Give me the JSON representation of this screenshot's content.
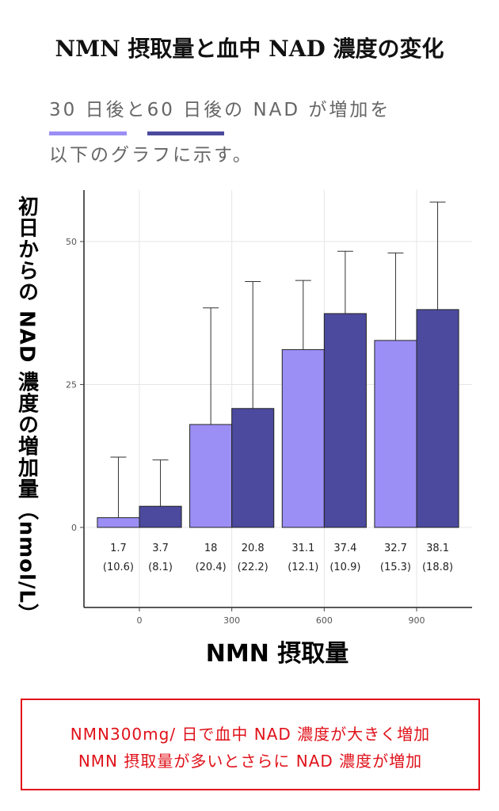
{
  "header": {
    "title": "NMN 摂取量と血中 NAD 濃度の変化",
    "sub_30": "30 日後",
    "sub_to": "と",
    "sub_60": "60 日後",
    "sub_rest1": "の NAD が増加を",
    "sub_rest2": "以下のグラフに示す。"
  },
  "chart_data": {
    "type": "bar",
    "categories": [
      "0",
      "300",
      "600",
      "900"
    ],
    "xlabel": "NMN 摂取量",
    "ylabel": "初日からの NAD 濃度の増加量（nmol/L）",
    "ylim": [
      -14,
      59
    ],
    "yticks": [
      0,
      25,
      50
    ],
    "grid": true,
    "series": [
      {
        "color": "#9b8ff5",
        "values": [
          1.7,
          18,
          31.1,
          32.7
        ],
        "sd": [
          10.6,
          20.4,
          12.1,
          15.3
        ],
        "value_labels": [
          "1.7",
          "18",
          "31.1",
          "32.7"
        ],
        "sd_labels": [
          "(10.6)",
          "(20.4)",
          "(12.1)",
          "(15.3)"
        ]
      },
      {
        "color": "#4b4a9e",
        "values": [
          3.7,
          20.8,
          37.4,
          38.1
        ],
        "sd": [
          8.1,
          22.2,
          10.9,
          18.8
        ],
        "value_labels": [
          "3.7",
          "20.8",
          "37.4",
          "38.1"
        ],
        "sd_labels": [
          "(8.1)",
          "(22.2)",
          "(10.9)",
          "(18.8)"
        ]
      }
    ]
  },
  "note": {
    "line1": "NMN300mg/ 日で血中 NAD 濃度が大きく増加",
    "line2": "NMN 摂取量が多いとさらに NAD 濃度が増加"
  }
}
